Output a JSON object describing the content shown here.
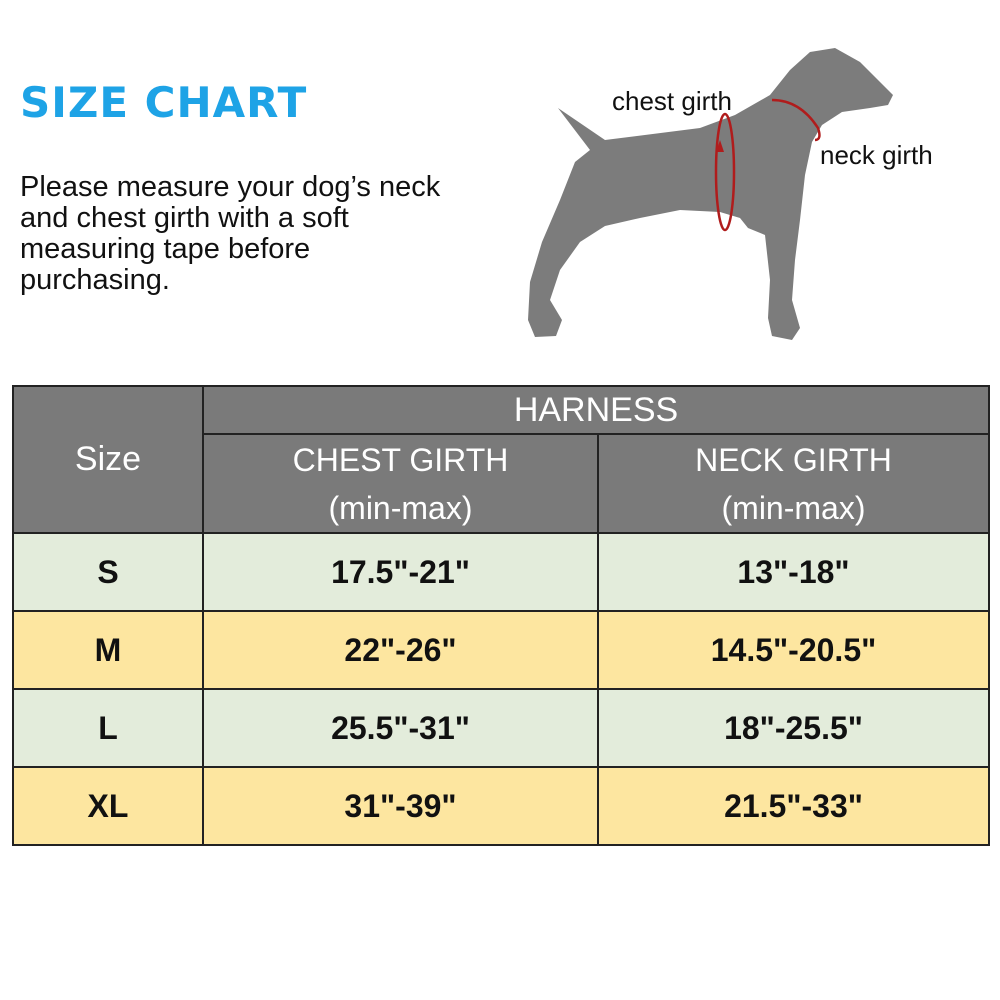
{
  "title": "SIZE CHART",
  "intro": "Please measure your dog’s neck and chest girth with a soft measuring tape before purchasing.",
  "diagram": {
    "chest_label": "chest girth",
    "neck_label": "neck girth",
    "accent": "#b01c1c",
    "dog_color": "#7c7c7c"
  },
  "colors": {
    "title": "#1ea3e6",
    "header_bg": "#7a7a7a",
    "row_green": "#e3ecdb",
    "row_yellow": "#fde6a0"
  },
  "table": {
    "size_header": "Size",
    "group_header": "HARNESS",
    "chest_header": "CHEST GIRTH",
    "chest_sub": "(min-max)",
    "neck_header": "NECK GIRTH",
    "neck_sub": "(min-max)",
    "rows": [
      {
        "size": "S",
        "chest": "17.5\"-21\"",
        "neck": "13\"-18\""
      },
      {
        "size": "M",
        "chest": "22\"-26\"",
        "neck": "14.5\"-20.5\""
      },
      {
        "size": "L",
        "chest": "25.5\"-31\"",
        "neck": "18\"-25.5\""
      },
      {
        "size": "XL",
        "chest": "31\"-39\"",
        "neck": "21.5\"-33\""
      }
    ]
  }
}
